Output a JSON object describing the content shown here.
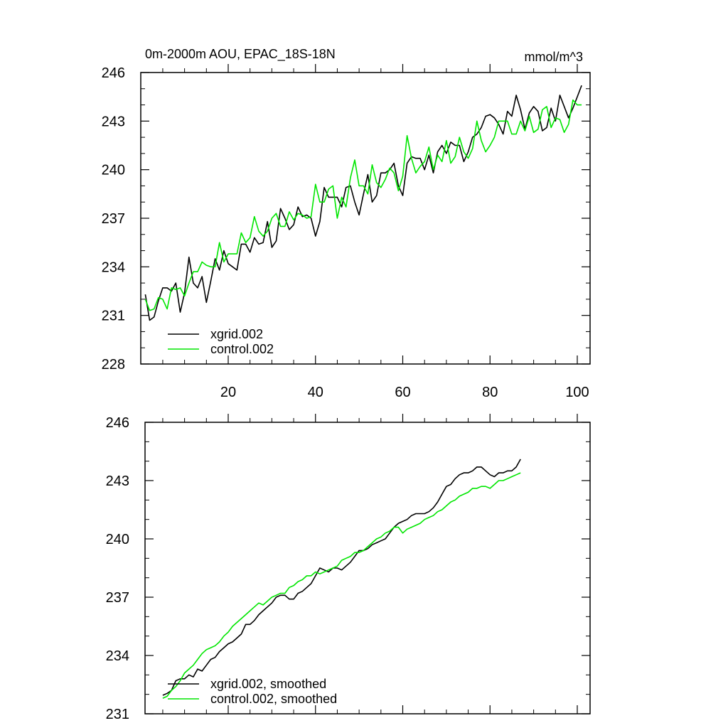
{
  "colors": {
    "xgrid": "#000000",
    "control": "#00e600",
    "axis": "#000000",
    "background": "#ffffff"
  },
  "chart_data": [
    {
      "type": "line",
      "title": "0m-2000m AOU, EPAC_18S-18N",
      "units": "mmol/m^3",
      "xlim": [
        0,
        101
      ],
      "ylim": [
        228,
        246
      ],
      "yticks": [
        228,
        231,
        234,
        237,
        240,
        243,
        246
      ],
      "ytick_labels": [
        "228",
        "231",
        "234",
        "237",
        "240",
        "243",
        "246"
      ],
      "xticks": [
        20,
        40,
        60,
        80,
        100
      ],
      "xtick_labels": [
        "20",
        "40",
        "60",
        "80",
        "100"
      ],
      "legend_position": "bottom-left",
      "series": [
        {
          "name": "xgrid.002",
          "color": "#000000",
          "x_start": 1,
          "values": [
            232.3,
            230.7,
            230.9,
            231.9,
            232.7,
            232.7,
            232.5,
            233.0,
            231.2,
            232.4,
            234.6,
            233.0,
            232.7,
            233.4,
            231.8,
            233.1,
            234.5,
            233.8,
            235.0,
            234.2,
            234.0,
            233.8,
            235.4,
            235.4,
            234.9,
            235.8,
            235.4,
            235.5,
            236.8,
            235.2,
            235.6,
            237.6,
            237.0,
            236.3,
            236.6,
            237.7,
            237.1,
            237.2,
            237.0,
            235.9,
            236.8,
            238.9,
            238.3,
            238.3,
            238.3,
            237.7,
            238.9,
            239.0,
            238.0,
            237.2,
            238.5,
            239.7,
            238.0,
            238.4,
            239.8,
            239.8,
            240.0,
            240.4,
            239.0,
            238.4,
            240.4,
            240.8,
            240.7,
            240.7,
            240.0,
            240.9,
            239.8,
            241.1,
            241.5,
            241.0,
            241.7,
            241.5,
            241.5,
            240.5,
            241.1,
            242.0,
            242.2,
            242.6,
            243.3,
            243.4,
            243.2,
            242.8,
            242.2,
            243.6,
            243.3,
            244.6,
            243.7,
            242.5,
            243.5,
            243.9,
            243.6,
            242.4,
            242.6,
            243.8,
            243.0,
            244.6,
            243.9,
            243.2,
            243.8,
            244.5,
            245.2
          ]
        },
        {
          "name": "control.002",
          "color": "#00e600",
          "x_start": 1,
          "values": [
            232.0,
            231.3,
            231.4,
            232.1,
            232.0,
            231.4,
            232.7,
            232.6,
            232.7,
            232.2,
            233.0,
            233.7,
            233.7,
            234.3,
            234.1,
            234.0,
            234.0,
            235.5,
            234.3,
            234.8,
            234.8,
            234.8,
            236.1,
            235.5,
            235.8,
            237.1,
            236.2,
            235.9,
            236.2,
            237.0,
            237.3,
            236.5,
            236.5,
            237.4,
            236.9,
            237.3,
            237.2,
            237.0,
            237.1,
            239.1,
            238.0,
            238.0,
            238.8,
            239.0,
            237.0,
            238.3,
            237.7,
            239.5,
            240.6,
            239.0,
            239.0,
            238.5,
            240.3,
            239.2,
            238.9,
            239.4,
            240.1,
            239.8,
            238.7,
            239.6,
            242.1,
            240.7,
            239.8,
            240.2,
            240.5,
            241.4,
            240.0,
            240.9,
            240.5,
            241.8,
            240.4,
            240.8,
            242.0,
            241.1,
            240.7,
            241.3,
            243.0,
            241.8,
            241.1,
            241.5,
            242.0,
            243.0,
            243.0,
            243.0,
            242.2,
            242.2,
            243.0,
            242.4,
            243.3,
            242.3,
            242.5,
            243.7,
            243.9,
            242.6,
            243.2,
            243.1,
            242.3,
            242.8,
            244.3,
            244.0,
            244.0
          ]
        }
      ]
    },
    {
      "type": "line",
      "title": "",
      "xlim": [
        0,
        101
      ],
      "ylim": [
        231,
        246
      ],
      "yticks": [
        231,
        234,
        237,
        240,
        243,
        246
      ],
      "ytick_labels": [
        "231",
        "234",
        "237",
        "240",
        "243",
        "246"
      ],
      "xticks": [
        20,
        40,
        60,
        80,
        100
      ],
      "xtick_labels": [],
      "legend_position": "bottom-left",
      "series": [
        {
          "name": "xgrid.002, smoothed",
          "color": "#000000",
          "x_start": 5,
          "values": [
            231.95,
            232.05,
            232.2,
            232.7,
            232.8,
            232.8,
            233.0,
            232.9,
            233.3,
            233.2,
            233.5,
            233.8,
            233.9,
            234.2,
            234.4,
            234.6,
            234.7,
            234.9,
            235.1,
            235.6,
            235.6,
            235.8,
            236.1,
            236.3,
            236.5,
            236.7,
            237.0,
            237.1,
            237.1,
            236.9,
            236.9,
            237.2,
            237.3,
            237.5,
            237.7,
            238.1,
            238.5,
            238.4,
            238.3,
            238.5,
            238.5,
            238.4,
            238.6,
            238.8,
            239.1,
            239.4,
            239.4,
            239.5,
            239.7,
            239.8,
            239.9,
            240.0,
            240.3,
            240.6,
            240.8,
            240.9,
            241.0,
            241.2,
            241.3,
            241.3,
            241.3,
            241.4,
            241.6,
            241.9,
            242.3,
            242.7,
            242.8,
            243.1,
            243.3,
            243.4,
            243.4,
            243.5,
            243.7,
            243.7,
            243.5,
            243.3,
            243.2,
            243.4,
            243.4,
            243.5,
            243.5,
            243.7,
            244.1
          ]
        },
        {
          "name": "control.002, smoothed",
          "color": "#00e600",
          "x_start": 5,
          "values": [
            231.8,
            231.9,
            232.2,
            232.4,
            232.7,
            233.1,
            233.3,
            233.5,
            233.8,
            234.1,
            234.3,
            234.4,
            234.5,
            234.7,
            235.0,
            235.2,
            235.5,
            235.7,
            235.9,
            236.1,
            236.3,
            236.5,
            236.7,
            236.6,
            236.8,
            237.0,
            237.1,
            237.2,
            237.2,
            237.5,
            237.6,
            237.8,
            237.9,
            238.1,
            238.1,
            238.3,
            238.2,
            238.3,
            238.4,
            238.5,
            238.6,
            238.9,
            239.0,
            239.1,
            239.3,
            239.3,
            239.4,
            239.6,
            239.8,
            240.0,
            240.1,
            240.3,
            240.4,
            240.6,
            240.6,
            240.3,
            240.5,
            240.6,
            240.7,
            240.8,
            241.0,
            241.1,
            241.2,
            241.4,
            241.5,
            241.7,
            241.9,
            242.0,
            242.2,
            242.3,
            242.4,
            242.6,
            242.6,
            242.7,
            242.7,
            242.6,
            242.8,
            243.0,
            243.0,
            243.1,
            243.2,
            243.3,
            243.4
          ]
        }
      ]
    }
  ]
}
